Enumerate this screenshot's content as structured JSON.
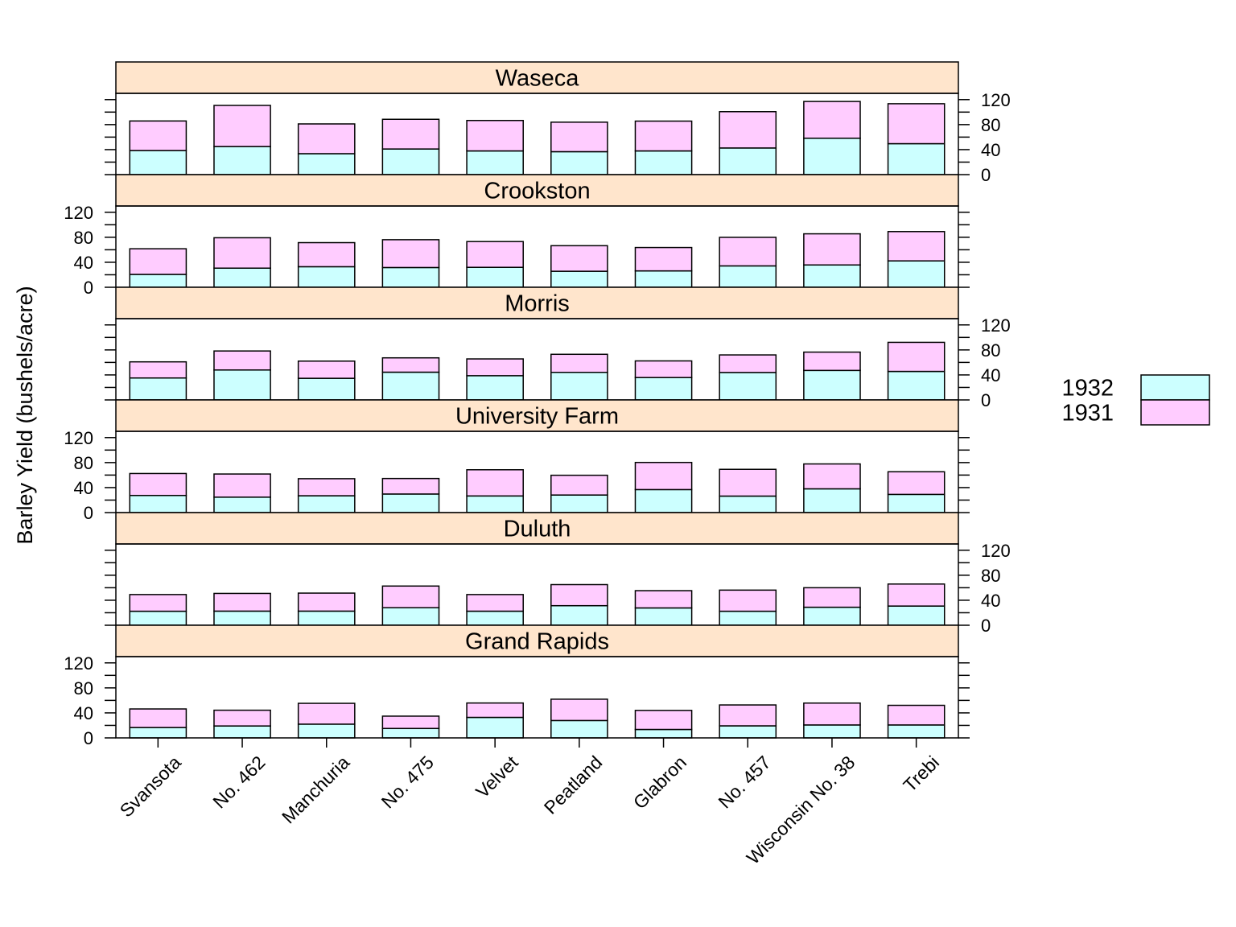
{
  "chart_data": {
    "type": "bar",
    "layout": "stacked bars, one panel per site, stacked vertically",
    "ylabel": "Barley Yield (bushels/acre)",
    "ylim": [
      0,
      130
    ],
    "yticks": [
      0,
      40,
      80,
      120
    ],
    "categories": [
      "Svansota",
      "No. 462",
      "Manchuria",
      "No. 475",
      "Velvet",
      "Peatland",
      "Glabron",
      "No. 457",
      "Wisconsin No. 38",
      "Trebi"
    ],
    "legend": {
      "position": "right",
      "entries": [
        {
          "name": "1932",
          "color": "#ccffff"
        },
        {
          "name": "1931",
          "color": "#ffccff"
        }
      ]
    },
    "panels": [
      {
        "site": "Waseca",
        "series": [
          {
            "name": "1932",
            "values": [
              38.5,
              44.9,
              33.5,
              41.0,
              37.9,
              36.7,
              37.9,
              42.6,
              58.2,
              49.5
            ]
          },
          {
            "name": "1931",
            "values": [
              47.3,
              65.8,
              47.6,
              47.5,
              48.7,
              47.2,
              47.7,
              58.1,
              58.8,
              63.9
            ]
          }
        ]
      },
      {
        "site": "Crookston",
        "series": [
          {
            "name": "1932",
            "values": [
              20.6,
              30.6,
              32.9,
              31.6,
              31.9,
              25.6,
              26.2,
              34.2,
              35.7,
              42.2
            ]
          },
          {
            "name": "1931",
            "values": [
              41.0,
              48.6,
              38.5,
              44.5,
              41.2,
              40.9,
              37.4,
              45.7,
              49.8,
              46.9
            ]
          }
        ]
      },
      {
        "site": "Morris",
        "series": [
          {
            "name": "1932",
            "values": [
              35.1,
              47.9,
              34.6,
              44.4,
              38.8,
              44.1,
              35.8,
              43.9,
              47.2,
              45.6
            ]
          },
          {
            "name": "1931",
            "values": [
              25.8,
              30.4,
              27.5,
              22.9,
              26.8,
              28.9,
              26.6,
              28.1,
              29.3,
              46.5
            ]
          }
        ]
      },
      {
        "site": "University Farm",
        "series": [
          {
            "name": "1932",
            "values": [
              27.4,
              24.7,
              26.9,
              29.7,
              26.6,
              28.1,
              36.8,
              26.4,
              38.0,
              29.1
            ]
          },
          {
            "name": "1931",
            "values": [
              35.1,
              37.0,
              27.3,
              24.8,
              41.9,
              31.6,
              43.4,
              42.8,
              39.8,
              36.2
            ]
          }
        ]
      },
      {
        "site": "Duluth",
        "series": [
          {
            "name": "1932",
            "values": [
              22.4,
              22.6,
              22.6,
              28.0,
              22.5,
              31.3,
              27.7,
              22.4,
              28.8,
              30.7
            ]
          },
          {
            "name": "1931",
            "values": [
              26.7,
              28.3,
              28.8,
              34.7,
              26.6,
              33.7,
              27.6,
              33.8,
              31.2,
              35.2
            ]
          }
        ]
      },
      {
        "site": "Grand Rapids",
        "series": [
          {
            "name": "1932",
            "values": [
              16.6,
              19.1,
              22.0,
              15.1,
              32.8,
              27.8,
              13.5,
              19.3,
              20.7,
              20.7
            ]
          },
          {
            "name": "1931",
            "values": [
              29.7,
              25.2,
              33.3,
              19.7,
              23.0,
              34.1,
              30.5,
              33.4,
              35.0,
              31.4
            ]
          }
        ]
      }
    ]
  }
}
